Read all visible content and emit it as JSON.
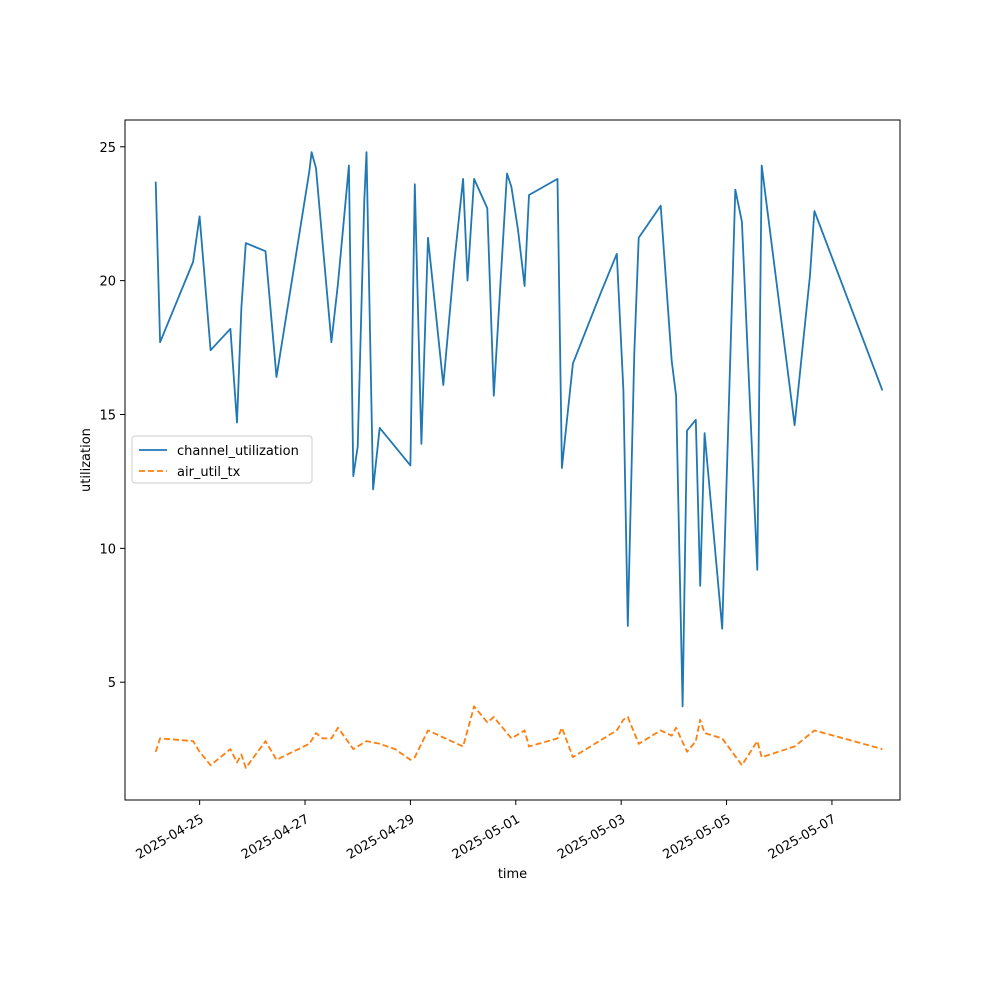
{
  "chart_data": {
    "type": "line",
    "xlabel": "time",
    "ylabel": "utilization",
    "x_ticks": [
      "2025-04-25",
      "2025-04-27",
      "2025-04-29",
      "2025-05-01",
      "2025-05-03",
      "2025-05-05",
      "2025-05-07"
    ],
    "y_ticks": [
      5,
      10,
      15,
      20,
      25
    ],
    "xlim": [
      "2025-04-23 14:00",
      "2025-05-08 07:00"
    ],
    "ylim": [
      0.6,
      26.0
    ],
    "grid": false,
    "legend_position": "center-left",
    "series": [
      {
        "name": "channel_utilization",
        "color": "#1f77b4",
        "style": "solid",
        "points": [
          [
            "2025-04-24 04:00",
            23.7
          ],
          [
            "2025-04-24 06:00",
            17.7
          ],
          [
            "2025-04-24 21:00",
            20.7
          ],
          [
            "2025-04-25 00:00",
            22.4
          ],
          [
            "2025-04-25 05:00",
            17.4
          ],
          [
            "2025-04-25 14:00",
            18.2
          ],
          [
            "2025-04-25 17:00",
            14.7
          ],
          [
            "2025-04-25 19:00",
            19.0
          ],
          [
            "2025-04-25 21:00",
            21.4
          ],
          [
            "2025-04-26 06:00",
            21.1
          ],
          [
            "2025-04-26 11:00",
            16.4
          ],
          [
            "2025-04-27 02:00",
            24.1
          ],
          [
            "2025-04-27 03:00",
            24.8
          ],
          [
            "2025-04-27 05:00",
            24.2
          ],
          [
            "2025-04-27 08:00",
            21.4
          ],
          [
            "2025-04-27 12:00",
            17.7
          ],
          [
            "2025-04-27 15:00",
            19.9
          ],
          [
            "2025-04-27 20:00",
            24.3
          ],
          [
            "2025-04-27 22:00",
            12.7
          ],
          [
            "2025-04-28 00:00",
            13.8
          ],
          [
            "2025-04-28 03:00",
            23.0
          ],
          [
            "2025-04-28 04:00",
            24.8
          ],
          [
            "2025-04-28 07:00",
            12.2
          ],
          [
            "2025-04-28 10:00",
            14.5
          ],
          [
            "2025-04-28 17:00",
            13.8
          ],
          [
            "2025-04-29 00:00",
            13.1
          ],
          [
            "2025-04-29 02:00",
            23.6
          ],
          [
            "2025-04-29 05:00",
            13.9
          ],
          [
            "2025-04-29 08:00",
            21.6
          ],
          [
            "2025-04-29 15:00",
            16.1
          ],
          [
            "2025-04-29 20:00",
            20.7
          ],
          [
            "2025-04-30 00:00",
            23.8
          ],
          [
            "2025-04-30 02:00",
            20.0
          ],
          [
            "2025-04-30 05:00",
            23.8
          ],
          [
            "2025-04-30 11:00",
            22.7
          ],
          [
            "2025-04-30 14:00",
            15.7
          ],
          [
            "2025-04-30 20:00",
            24.0
          ],
          [
            "2025-04-30 22:00",
            23.5
          ],
          [
            "2025-05-01 01:00",
            21.9
          ],
          [
            "2025-05-01 04:00",
            19.8
          ],
          [
            "2025-05-01 06:00",
            23.2
          ],
          [
            "2025-05-01 19:00",
            23.8
          ],
          [
            "2025-05-01 21:00",
            13.0
          ],
          [
            "2025-05-02 02:00",
            16.9
          ],
          [
            "2025-05-02 15:00",
            19.6
          ],
          [
            "2025-05-02 22:00",
            21.0
          ],
          [
            "2025-05-03 01:00",
            15.9
          ],
          [
            "2025-05-03 03:00",
            7.1
          ],
          [
            "2025-05-03 06:00",
            17.3
          ],
          [
            "2025-05-03 08:00",
            21.6
          ],
          [
            "2025-05-03 18:00",
            22.8
          ],
          [
            "2025-05-03 23:00",
            17.0
          ],
          [
            "2025-05-04 01:00",
            15.7
          ],
          [
            "2025-05-04 04:00",
            4.1
          ],
          [
            "2025-05-04 06:00",
            14.4
          ],
          [
            "2025-05-04 10:00",
            14.8
          ],
          [
            "2025-05-04 12:00",
            8.6
          ],
          [
            "2025-05-04 14:00",
            14.3
          ],
          [
            "2025-05-04 22:00",
            7.0
          ],
          [
            "2025-05-05 04:00",
            23.4
          ],
          [
            "2025-05-05 07:00",
            22.2
          ],
          [
            "2025-05-05 14:00",
            9.2
          ],
          [
            "2025-05-05 16:00",
            24.3
          ],
          [
            "2025-05-06 07:00",
            14.6
          ],
          [
            "2025-05-06 14:00",
            20.2
          ],
          [
            "2025-05-06 16:00",
            22.6
          ],
          [
            "2025-05-07 23:00",
            15.9
          ]
        ]
      },
      {
        "name": "air_util_tx",
        "color": "#ff7f0e",
        "style": "dashed",
        "points": [
          [
            "2025-04-24 04:00",
            2.4
          ],
          [
            "2025-04-24 06:00",
            2.9
          ],
          [
            "2025-04-24 21:00",
            2.8
          ],
          [
            "2025-04-25 00:00",
            2.4
          ],
          [
            "2025-04-25 05:00",
            1.9
          ],
          [
            "2025-04-25 14:00",
            2.5
          ],
          [
            "2025-04-25 17:00",
            2.0
          ],
          [
            "2025-04-25 19:00",
            2.3
          ],
          [
            "2025-04-25 21:00",
            1.8
          ],
          [
            "2025-04-26 06:00",
            2.8
          ],
          [
            "2025-04-26 11:00",
            2.1
          ],
          [
            "2025-04-27 02:00",
            2.7
          ],
          [
            "2025-04-27 05:00",
            3.1
          ],
          [
            "2025-04-27 08:00",
            2.9
          ],
          [
            "2025-04-27 12:00",
            2.9
          ],
          [
            "2025-04-27 15:00",
            3.3
          ],
          [
            "2025-04-27 22:00",
            2.5
          ],
          [
            "2025-04-28 04:00",
            2.8
          ],
          [
            "2025-04-28 10:00",
            2.7
          ],
          [
            "2025-04-28 17:00",
            2.5
          ],
          [
            "2025-04-29 00:00",
            2.1
          ],
          [
            "2025-04-29 02:00",
            2.2
          ],
          [
            "2025-04-29 08:00",
            3.2
          ],
          [
            "2025-04-30 00:00",
            2.6
          ],
          [
            "2025-04-30 05:00",
            4.1
          ],
          [
            "2025-04-30 11:00",
            3.5
          ],
          [
            "2025-04-30 14:00",
            3.7
          ],
          [
            "2025-04-30 22:00",
            2.9
          ],
          [
            "2025-05-01 04:00",
            3.2
          ],
          [
            "2025-05-01 06:00",
            2.6
          ],
          [
            "2025-05-01 19:00",
            2.9
          ],
          [
            "2025-05-01 21:00",
            3.3
          ],
          [
            "2025-05-02 02:00",
            2.2
          ],
          [
            "2025-05-02 22:00",
            3.2
          ],
          [
            "2025-05-03 01:00",
            3.6
          ],
          [
            "2025-05-03 03:00",
            3.7
          ],
          [
            "2025-05-03 08:00",
            2.7
          ],
          [
            "2025-05-03 18:00",
            3.2
          ],
          [
            "2025-05-03 23:00",
            3.0
          ],
          [
            "2025-05-04 01:00",
            3.3
          ],
          [
            "2025-05-04 06:00",
            2.4
          ],
          [
            "2025-05-04 10:00",
            2.8
          ],
          [
            "2025-05-04 12:00",
            3.6
          ],
          [
            "2025-05-04 14:00",
            3.1
          ],
          [
            "2025-05-04 22:00",
            2.9
          ],
          [
            "2025-05-05 07:00",
            1.9
          ],
          [
            "2025-05-05 14:00",
            2.8
          ],
          [
            "2025-05-05 16:00",
            2.2
          ],
          [
            "2025-05-06 07:00",
            2.6
          ],
          [
            "2025-05-06 16:00",
            3.2
          ],
          [
            "2025-05-07 23:00",
            2.5
          ]
        ]
      }
    ]
  }
}
